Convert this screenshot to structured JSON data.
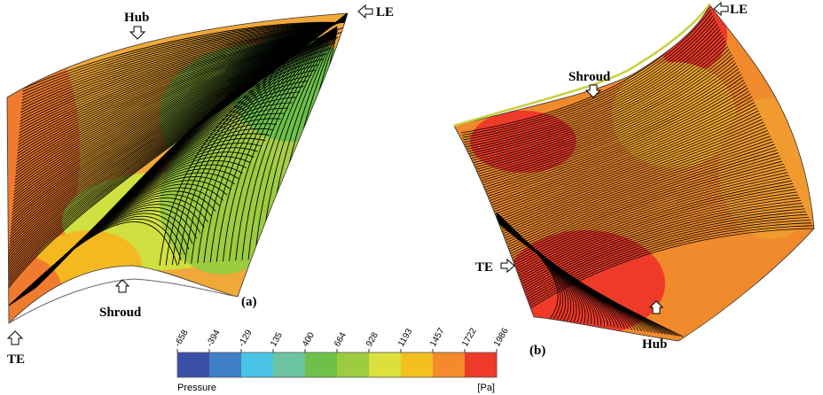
{
  "panel_a": {
    "tag": "(a)",
    "labels": {
      "hub": "Hub",
      "le": "LE",
      "te": "TE",
      "shroud": "Shroud"
    }
  },
  "panel_b": {
    "tag": "(b)",
    "labels": {
      "shroud": "Shroud",
      "le": "LE",
      "te": "TE",
      "hub": "Hub"
    }
  },
  "colorbar": {
    "variable": "Pressure",
    "unit": "[Pa]",
    "ticks": [
      "-658",
      "-394",
      "-129",
      "135",
      "400",
      "664",
      "928",
      "1193",
      "1457",
      "1722",
      "1986"
    ],
    "colors": [
      "#3a50a8",
      "#3e7fc6",
      "#4ac4e6",
      "#6cc4a0",
      "#6ec048",
      "#9ccc40",
      "#dce03c",
      "#f4c020",
      "#f48a2c",
      "#ee3a28"
    ]
  }
}
